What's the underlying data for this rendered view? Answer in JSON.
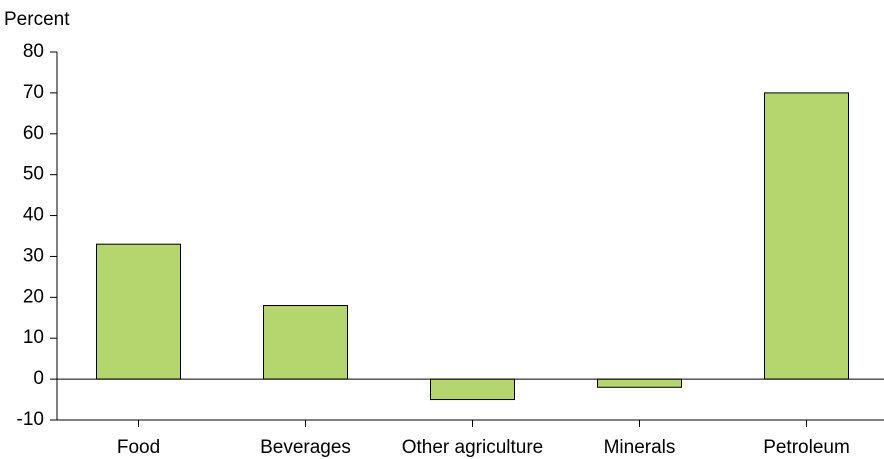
{
  "chart_data": {
    "type": "bar",
    "y_label": "Percent",
    "categories": [
      "Food",
      "Beverages",
      "Other agriculture",
      "Minerals",
      "Petroleum"
    ],
    "values": [
      33,
      18,
      -5,
      -2,
      70
    ],
    "color": "#b5d56e",
    "ylim": [
      -10,
      80
    ],
    "yticks": [
      -10,
      0,
      10,
      20,
      30,
      40,
      50,
      60,
      70,
      80
    ],
    "grid": false
  }
}
